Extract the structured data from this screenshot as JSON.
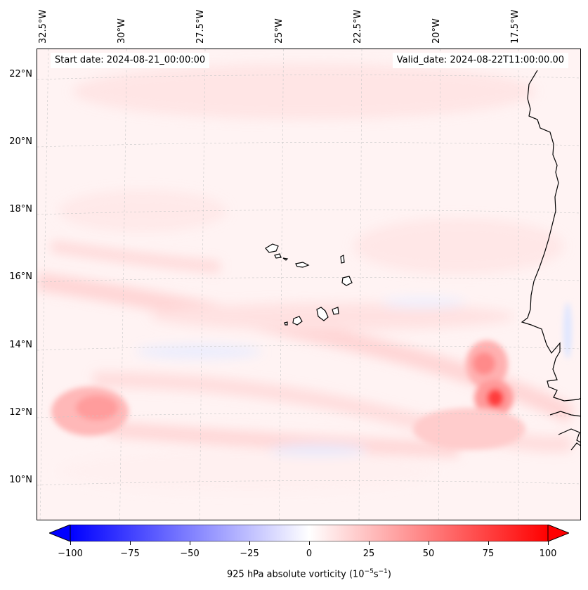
{
  "header": {
    "start_date": "Start date: 2024-08-21_00:00:00",
    "valid_date": "Valid_date: 2024-08-22T11:00:00.00"
  },
  "axes": {
    "lon_labels": [
      "32.5°W",
      "30°W",
      "27.5°W",
      "25°W",
      "22.5°W",
      "20°W",
      "17.5°W"
    ],
    "lat_labels": [
      "22°N",
      "20°N",
      "18°N",
      "16°N",
      "14°N",
      "12°N",
      "10°N"
    ]
  },
  "colorbar": {
    "ticks": [
      "−100",
      "−75",
      "−50",
      "−25",
      "0",
      "25",
      "50",
      "75",
      "100"
    ],
    "label_main": "925 hPa absolute vorticity (10",
    "label_exp1": "−5",
    "label_mid": "s",
    "label_exp2": "−1",
    "label_end": ")",
    "min_color": "#0000ff",
    "mid_color": "#ffffff",
    "max_color": "#ff0000"
  },
  "field": {
    "variable": "925 hPa absolute vorticity",
    "range": [
      -100,
      100
    ],
    "notable_maxima": [
      {
        "lon": -18.2,
        "lat": 12.4,
        "value": 80
      },
      {
        "lon": -18.6,
        "lat": 13.5,
        "value": 45
      },
      {
        "lon": -31.3,
        "lat": 12.2,
        "value": 40
      }
    ]
  }
}
